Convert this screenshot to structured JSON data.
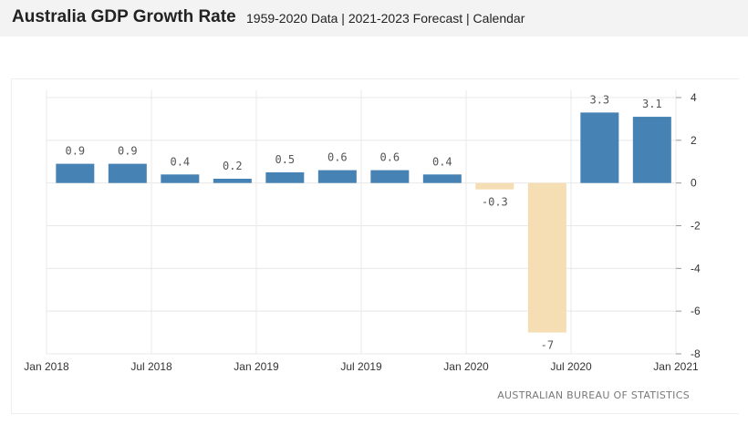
{
  "header": {
    "title": "Australia GDP Growth Rate",
    "subtitle": "1959-2020 Data | 2021-2023 Forecast | Calendar"
  },
  "chart_data": {
    "type": "bar",
    "title": "",
    "xlabel": "",
    "ylabel": "",
    "categories": [
      "Mar 2018",
      "Jun 2018",
      "Sep 2018",
      "Dec 2018",
      "Mar 2019",
      "Jun 2019",
      "Sep 2019",
      "Dec 2019",
      "Mar 2020",
      "Jun 2020",
      "Sep 2020",
      "Dec 2020"
    ],
    "values": [
      0.9,
      0.9,
      0.4,
      0.2,
      0.5,
      0.6,
      0.6,
      0.4,
      -0.3,
      -7,
      3.3,
      3.1
    ],
    "data_labels": [
      "0.9",
      "0.9",
      "0.4",
      "0.2",
      "0.5",
      "0.6",
      "0.6",
      "0.4",
      "-0.3",
      "-7",
      "3.3",
      "3.1"
    ],
    "x_tick_labels": [
      "Jan 2018",
      "Jul 2018",
      "Jan 2019",
      "Jul 2019",
      "Jan 2020",
      "Jul 2020",
      "Jan 2021"
    ],
    "y_ticks": [
      4,
      2,
      0,
      -2,
      -4,
      -6,
      -8
    ],
    "ylim": [
      -8,
      4
    ],
    "y_axis_side": "right",
    "grid": true,
    "colors": {
      "positive": "#4682b4",
      "negative": "#f5deb3",
      "grid": "#e8e8e8"
    },
    "credit": "AUSTRALIAN BUREAU OF STATISTICS"
  }
}
